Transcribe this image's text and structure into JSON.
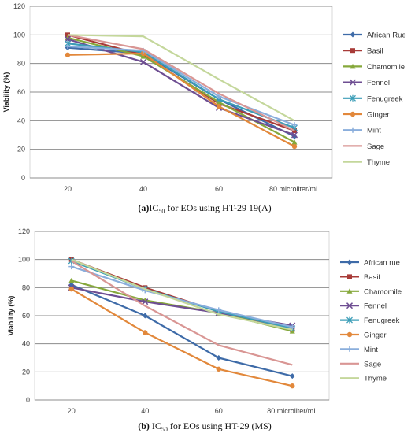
{
  "chart_data": [
    {
      "type": "line",
      "caption_prefix": "(a)",
      "caption_ic": "IC",
      "caption_sub": "50",
      "caption_rest": " for EOs using HT-29 19(A)",
      "ylabel": "Viability (%)",
      "xlabel": "",
      "categories": [
        "20",
        "40",
        "60",
        "80 microliter/mL"
      ],
      "ylim": [
        0,
        120
      ],
      "yticks": [
        0,
        20,
        40,
        60,
        80,
        100,
        120
      ],
      "grid": true,
      "legend_position": "right",
      "series": [
        {
          "name": "African Rue",
          "color": "#3E6BA8",
          "marker": "diamond",
          "values": [
            91,
            87,
            55,
            29
          ]
        },
        {
          "name": "Basil",
          "color": "#A83B38",
          "marker": "square",
          "values": [
            100,
            86,
            52,
            33
          ]
        },
        {
          "name": "Chamomile",
          "color": "#86A83B",
          "marker": "triangle",
          "values": [
            98,
            85,
            53,
            25
          ]
        },
        {
          "name": "Fennel",
          "color": "#6E4E92",
          "marker": "x",
          "values": [
            97,
            81,
            49,
            30
          ]
        },
        {
          "name": "Fenugreek",
          "color": "#3B9DB7",
          "marker": "star",
          "values": [
            94,
            88,
            55,
            35
          ]
        },
        {
          "name": "Ginger",
          "color": "#E2883B",
          "marker": "circle",
          "values": [
            86,
            87,
            50,
            22
          ]
        },
        {
          "name": "Mint",
          "color": "#8AAEDC",
          "marker": "plus",
          "values": [
            92,
            89,
            57,
            37
          ]
        },
        {
          "name": "Sage",
          "color": "#D99694",
          "marker": "none",
          "values": [
            100,
            90,
            59,
            33
          ]
        },
        {
          "name": "Thyme",
          "color": "#C4D79B",
          "marker": "none",
          "values": [
            100,
            99,
            69,
            40
          ]
        }
      ]
    },
    {
      "type": "line",
      "caption_prefix": "(b)",
      "caption_ic": "IC",
      "caption_sub": "50",
      "caption_rest": " for EOs using HT-29 (MS)",
      "ylabel": "Viability (%)",
      "xlabel": "",
      "categories": [
        "20",
        "40",
        "60",
        "80 microliter/mL"
      ],
      "ylim": [
        0,
        120
      ],
      "yticks": [
        0,
        20,
        40,
        60,
        80,
        100,
        120
      ],
      "grid": true,
      "legend_position": "right",
      "series": [
        {
          "name": "African rue",
          "color": "#3E6BA8",
          "marker": "diamond",
          "values": [
            82,
            60,
            30,
            17
          ]
        },
        {
          "name": "Basil",
          "color": "#A83B38",
          "marker": "square",
          "values": [
            100,
            80,
            63,
            50
          ]
        },
        {
          "name": "Chamomile",
          "color": "#86A83B",
          "marker": "triangle",
          "values": [
            85,
            71,
            62,
            49
          ]
        },
        {
          "name": "Fennel",
          "color": "#6E4E92",
          "marker": "x",
          "values": [
            80,
            70,
            62,
            53
          ]
        },
        {
          "name": "Fenugreek",
          "color": "#3B9DB7",
          "marker": "star",
          "values": [
            99,
            79,
            63,
            51
          ]
        },
        {
          "name": "Ginger",
          "color": "#E2883B",
          "marker": "circle",
          "values": [
            79,
            48,
            22,
            10
          ]
        },
        {
          "name": "Mint",
          "color": "#8AAEDC",
          "marker": "plus",
          "values": [
            95,
            78,
            64,
            52
          ]
        },
        {
          "name": "Sage",
          "color": "#D99694",
          "marker": "none",
          "values": [
            99,
            67,
            39,
            25
          ]
        },
        {
          "name": "Thyme",
          "color": "#C4D79B",
          "marker": "none",
          "values": [
            100,
            79,
            61,
            50
          ]
        }
      ]
    }
  ]
}
